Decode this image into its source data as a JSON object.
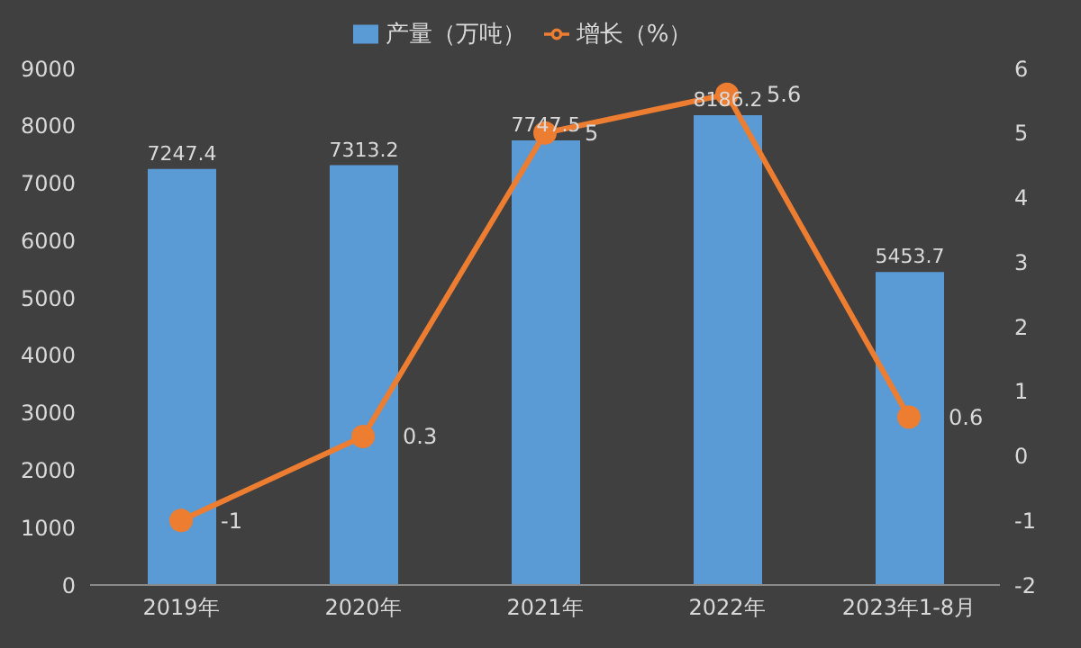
{
  "chart_data": {
    "type": "bar",
    "categories": [
      "2019年",
      "2020年",
      "2021年",
      "2022年",
      "2023年1-8月"
    ],
    "series": [
      {
        "name": "产量（万吨）",
        "color": "#5b9bd5",
        "values": [
          7247.4,
          7313.2,
          7747.5,
          8186.2,
          5453.7
        ]
      },
      {
        "name": "增长（%）",
        "type": "line",
        "axis": "y2",
        "color": "#ed7d31",
        "values": [
          -1,
          0.3,
          5,
          5.6,
          0.6
        ]
      }
    ],
    "ylim": [
      0,
      9000
    ],
    "yticks": [
      0,
      1000,
      2000,
      3000,
      4000,
      5000,
      6000,
      7000,
      8000,
      9000
    ],
    "y2lim": [
      -2,
      6
    ],
    "y2ticks": [
      -2,
      -1,
      0,
      1,
      2,
      3,
      4,
      5,
      6
    ],
    "data_labels": true,
    "legend": "top",
    "grid": false,
    "marker": "circle",
    "line_style": "solid"
  }
}
